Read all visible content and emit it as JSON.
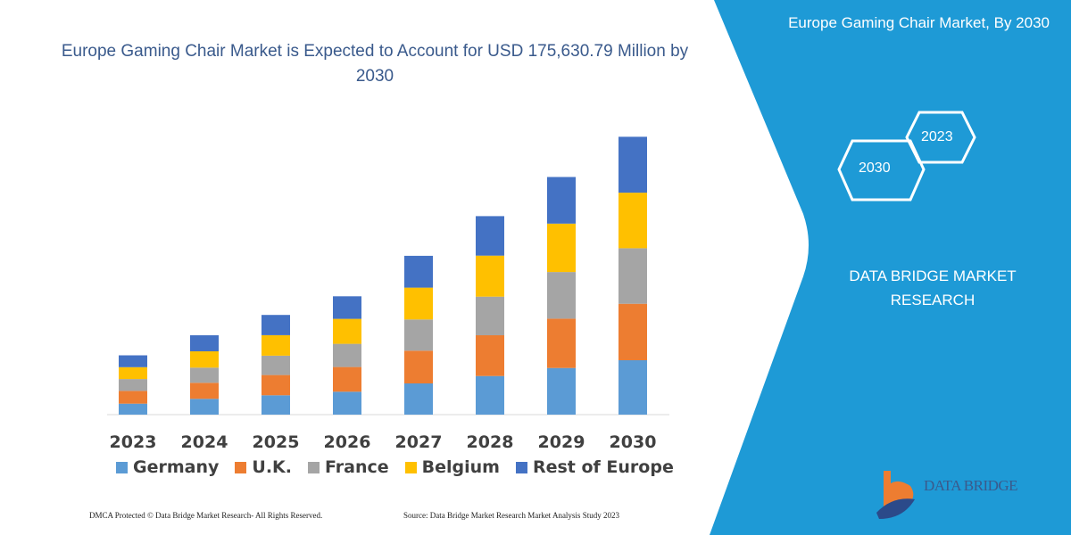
{
  "title": "Europe Gaming Chair Market is Expected to Account for USD 175,630.79 Million by 2030",
  "side_panel": {
    "title": "Europe Gaming Chair Market, By 2030",
    "hex_start": "2023",
    "hex_end": "2030",
    "brand": "DATA BRIDGE MARKET RESEARCH",
    "logo_text": "DATA BRIDGE",
    "panel_color": "#1e9ad6"
  },
  "footer": {
    "copyright": "DMCA Protected © Data Bridge Market Research-  All Rights Reserved.",
    "source": "Source: Data Bridge Market Research  Market Analysis Study 2023"
  },
  "chart_data": {
    "type": "bar",
    "stacked": true,
    "title": "",
    "xlabel": "",
    "ylabel": "",
    "ylim": [
      0,
      312
    ],
    "grid": false,
    "y_axis_shown": false,
    "legend_position": "bottom",
    "categories": [
      "2023",
      "2024",
      "2025",
      "2026",
      "2027",
      "2028",
      "2029",
      "2030"
    ],
    "series": [
      {
        "name": "Germany",
        "color": "#5b9bd5",
        "values": [
          12.3,
          17.7,
          21.7,
          25.7,
          35,
          43.3,
          52.3,
          61
        ]
      },
      {
        "name": "U.K.",
        "color": "#ed7d31",
        "values": [
          14.3,
          18,
          22.7,
          27.7,
          36.7,
          45.7,
          55.3,
          63.3
        ]
      },
      {
        "name": "France",
        "color": "#a5a5a5",
        "values": [
          13.3,
          17,
          21.7,
          26,
          35,
          43.3,
          52.3,
          62.3
        ]
      },
      {
        "name": "Belgium",
        "color": "#ffc000",
        "values": [
          13.3,
          18.3,
          23,
          28,
          35.7,
          46,
          54.3,
          62.3
        ]
      },
      {
        "name": "Rest of Europe",
        "color": "#4472c4",
        "values": [
          13.3,
          18,
          22.7,
          25.3,
          35.7,
          44.3,
          52.3,
          62.7
        ]
      }
    ]
  }
}
